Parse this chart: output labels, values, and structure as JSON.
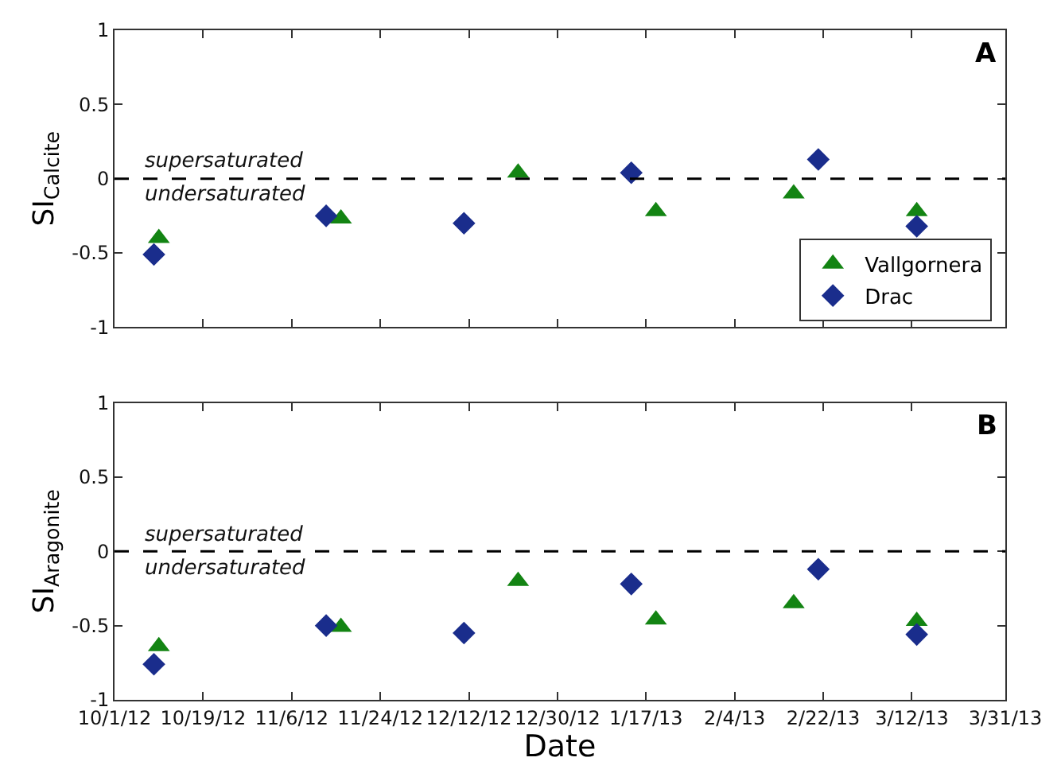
{
  "chart_data": [
    {
      "type": "scatter",
      "ylabel": "SI$_{Calcite}$",
      "xlim": [
        "2012-10-01",
        "2013-03-31"
      ],
      "xticks": [
        {
          "value": "2012-10-01",
          "label": null
        },
        {
          "value": "2012-10-19",
          "label": null
        },
        {
          "value": "2012-11-06",
          "label": null
        },
        {
          "value": "2012-11-24",
          "label": null
        },
        {
          "value": "2012-12-12",
          "label": null
        },
        {
          "value": "2012-12-30",
          "label": null
        },
        {
          "value": "2013-01-17",
          "label": null
        },
        {
          "value": "2013-02-04",
          "label": null
        },
        {
          "value": "2013-02-22",
          "label": null
        },
        {
          "value": "2013-03-12",
          "label": null
        },
        {
          "value": "2013-03-31",
          "label": null
        }
      ],
      "ylim": [
        -1,
        1
      ],
      "yticks": [
        -1,
        -0.5,
        0,
        0.5,
        1
      ],
      "tick_labels": "y",
      "legend": "bottom right",
      "ref_lines": [
        {
          "axis": "y",
          "value": 0,
          "label": null,
          "line_style": "dashed",
          "color": "#000000"
        }
      ],
      "annotations": [
        "A",
        "supersaturated",
        "undersaturated"
      ],
      "series": [
        {
          "name": "Vallgornera",
          "color": "#138413",
          "marker": "triangle",
          "x": [
            "2012-10-10",
            "2012-11-16",
            "2012-12-22",
            "2013-01-19",
            "2013-02-16",
            "2013-03-13"
          ],
          "values": [
            -0.4,
            -0.27,
            0.04,
            -0.22,
            -0.1,
            -0.22
          ]
        },
        {
          "name": "Drac",
          "color": "#1a2d8c",
          "marker": "diamond",
          "x": [
            "2012-10-09",
            "2012-11-13",
            "2012-12-11",
            "2013-01-14",
            "2013-02-21",
            "2013-03-13"
          ],
          "values": [
            -0.51,
            -0.25,
            -0.3,
            0.04,
            0.13,
            -0.32
          ]
        }
      ]
    },
    {
      "type": "scatter",
      "ylabel": "SI$_{Aragonite}$",
      "xlabel": "Date",
      "xlim": [
        "2012-10-01",
        "2013-03-31"
      ],
      "xticks": [
        {
          "value": "2012-10-01",
          "label": "10/1/12"
        },
        {
          "value": "2012-10-19",
          "label": "10/19/12"
        },
        {
          "value": "2012-11-06",
          "label": "11/6/12"
        },
        {
          "value": "2012-11-24",
          "label": "11/24/12"
        },
        {
          "value": "2012-12-12",
          "label": "12/12/12"
        },
        {
          "value": "2012-12-30",
          "label": "12/30/12"
        },
        {
          "value": "2013-01-17",
          "label": "1/17/13"
        },
        {
          "value": "2013-02-04",
          "label": "2/4/13"
        },
        {
          "value": "2013-02-22",
          "label": "2/22/13"
        },
        {
          "value": "2013-03-12",
          "label": "3/12/13"
        },
        {
          "value": "2013-03-31",
          "label": "3/31/13"
        }
      ],
      "ylim": [
        -1,
        1
      ],
      "yticks": [
        -1,
        -0.5,
        0,
        0.5,
        1
      ],
      "ref_lines": [
        {
          "axis": "y",
          "value": 0,
          "label": null,
          "line_style": "dashed",
          "color": "#000000"
        }
      ],
      "annotations": [
        "B",
        "supersaturated",
        "undersaturated"
      ],
      "series": [
        {
          "color": "#138413",
          "marker": "triangle",
          "x": [
            "2012-10-10",
            "2012-11-16",
            "2012-12-22",
            "2013-01-19",
            "2013-02-16",
            "2013-03-13"
          ],
          "values": [
            -0.64,
            -0.51,
            -0.2,
            -0.46,
            -0.35,
            -0.47
          ]
        },
        {
          "color": "#1a2d8c",
          "marker": "diamond",
          "x": [
            "2012-10-09",
            "2012-11-13",
            "2012-12-11",
            "2013-01-14",
            "2013-02-21",
            "2013-03-13"
          ],
          "values": [
            -0.76,
            -0.5,
            -0.55,
            -0.22,
            -0.12,
            -0.56
          ]
        }
      ]
    }
  ]
}
